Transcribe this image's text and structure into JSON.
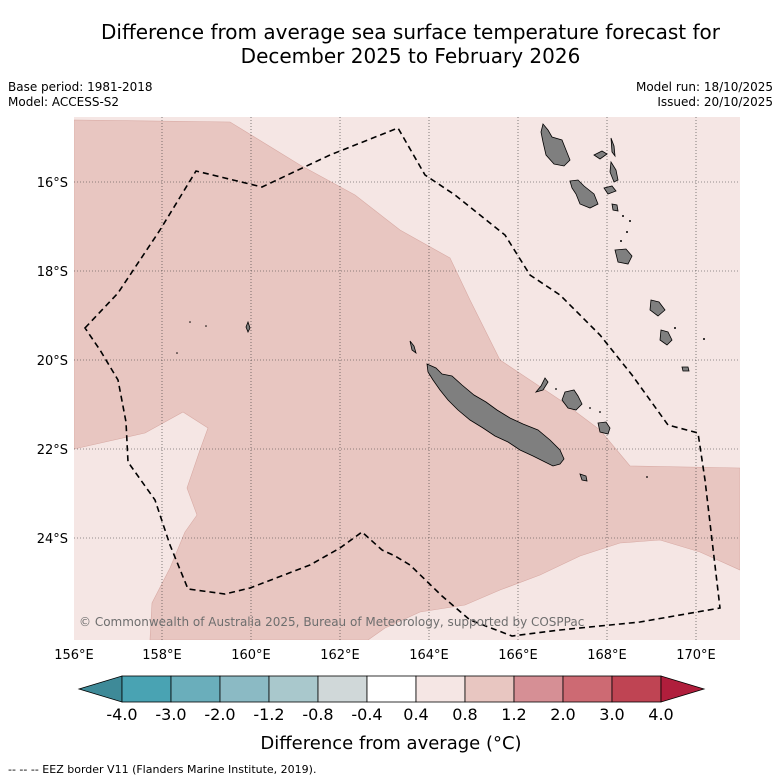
{
  "title": {
    "line1": "Difference from average sea surface temperature forecast for",
    "line2": "December 2025 to February 2026"
  },
  "info_left": {
    "base_period": "Base period: 1981-2018",
    "model": "Model: ACCESS-S2"
  },
  "info_right": {
    "model_run": "Model run: 18/10/2025",
    "issued": "Issued: 20/10/2025"
  },
  "map": {
    "lon_labels": [
      "156°E",
      "158°E",
      "160°E",
      "162°E",
      "164°E",
      "166°E",
      "168°E",
      "170°E"
    ],
    "lat_labels": [
      "16°S",
      "18°S",
      "20°S",
      "22°S",
      "24°S"
    ],
    "copyright": "© Commonwealth of Australia 2025, Bureau of Meteorology, supported by COSPPac",
    "colors": {
      "anomaly_0_4_to_0_8": "#f5e6e4",
      "anomaly_0_8_to_1_2": "#e8c6c1",
      "land": "#7f7f7f"
    }
  },
  "colorbar": {
    "label": "Difference from average (°C)",
    "ticks": [
      "-4.0",
      "-3.0",
      "-2.0",
      "-1.2",
      "-0.8",
      "-0.4",
      "0.4",
      "0.8",
      "1.2",
      "2.0",
      "3.0",
      "4.0"
    ],
    "colors": [
      "#3e8a98",
      "#49a3b3",
      "#6aaebb",
      "#8bbac4",
      "#a9c8cc",
      "#d0d8d9",
      "#ffffff",
      "#f5e6e4",
      "#e8c6c1",
      "#d68f95",
      "#cd6a73",
      "#bf4453",
      "#b01e3c"
    ]
  },
  "footer": "-- -- -- EEZ border V11 (Flanders Marine Institute, 2019)."
}
